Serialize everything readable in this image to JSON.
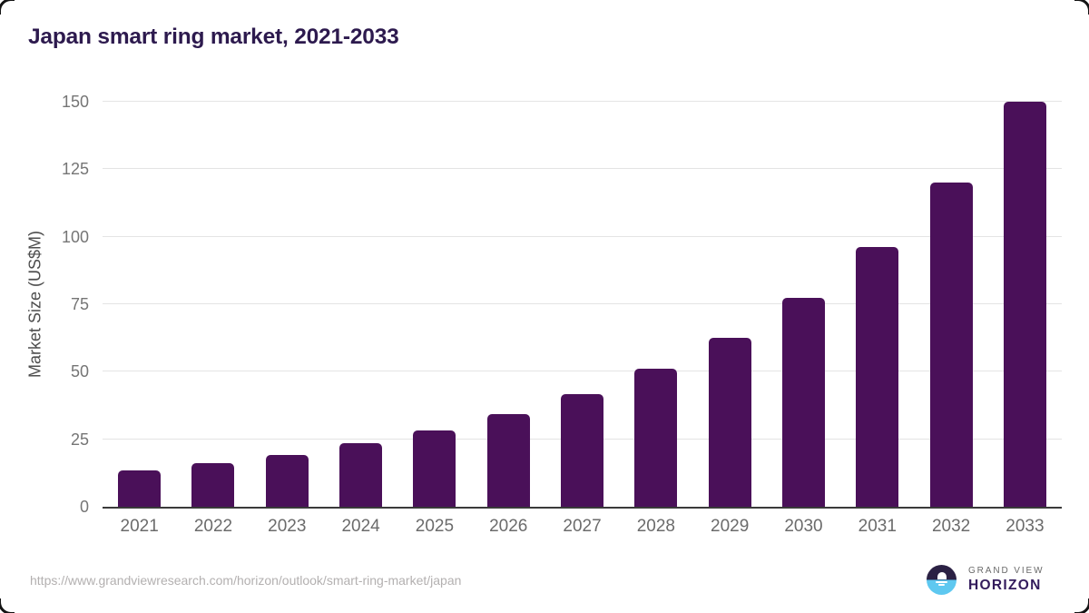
{
  "page": {
    "source_url": "https://www.grandviewresearch.com/horizon/outlook/smart-ring-market/japan"
  },
  "logo": {
    "name_top": "GRAND VIEW",
    "name_bottom": "HORIZON",
    "mark_icon": "sunset-horizon-icon"
  },
  "chart_data": {
    "type": "bar",
    "title": "Japan smart ring market, 2021-2033",
    "categories": [
      "2021",
      "2022",
      "2023",
      "2024",
      "2025",
      "2026",
      "2027",
      "2028",
      "2029",
      "2030",
      "2031",
      "2032",
      "2033"
    ],
    "values": [
      13.3,
      16.1,
      19.3,
      23.4,
      28.2,
      34.4,
      41.8,
      51,
      62.6,
      77.2,
      96.2,
      120,
      150
    ],
    "xlabel": "",
    "ylabel": "Market Size (US$M)",
    "ylim": [
      0,
      150
    ],
    "yticks": [
      0,
      25,
      50,
      75,
      100,
      125,
      150
    ],
    "grid": true,
    "legend": false
  },
  "colors": {
    "background": "#ffffff",
    "bar": "#4a1059",
    "title": "#2d1a4e",
    "axis_line": "#3a3a3a",
    "gridline": "#e4e4e4",
    "tick_label": "#757575",
    "x_label": "#6b6b6b",
    "y_axis_title": "#4d4d4d",
    "url": "#b3b0b0",
    "frame": "#141414",
    "logo_top_half": "#2b2144",
    "logo_water": "#5ec8f0",
    "logo_text_top": "#6a6a6a",
    "logo_text_bottom": "#331c5c"
  }
}
